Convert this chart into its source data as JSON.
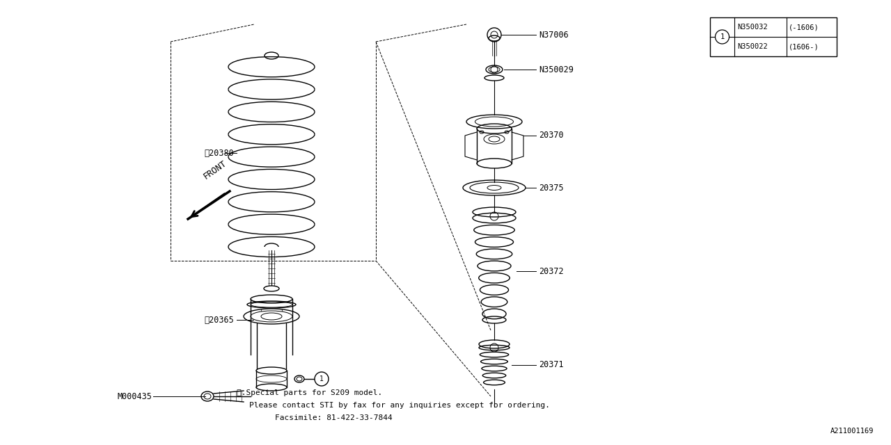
{
  "bg_color": "#ffffff",
  "line_color": "#000000",
  "fig_width": 12.8,
  "fig_height": 6.4,
  "dpi": 100,
  "footnote_line1": "※.Special parts for S209 model.",
  "footnote_line2": "Please contact STI by fax for any inquiries except for ordering.",
  "footnote_line3": "Facsimile: 81-422-33-7844",
  "diagram_id": "A211001169",
  "table_data": [
    [
      "N350032",
      "(-1606)"
    ],
    [
      "N350022",
      "(1606-)"
    ]
  ]
}
